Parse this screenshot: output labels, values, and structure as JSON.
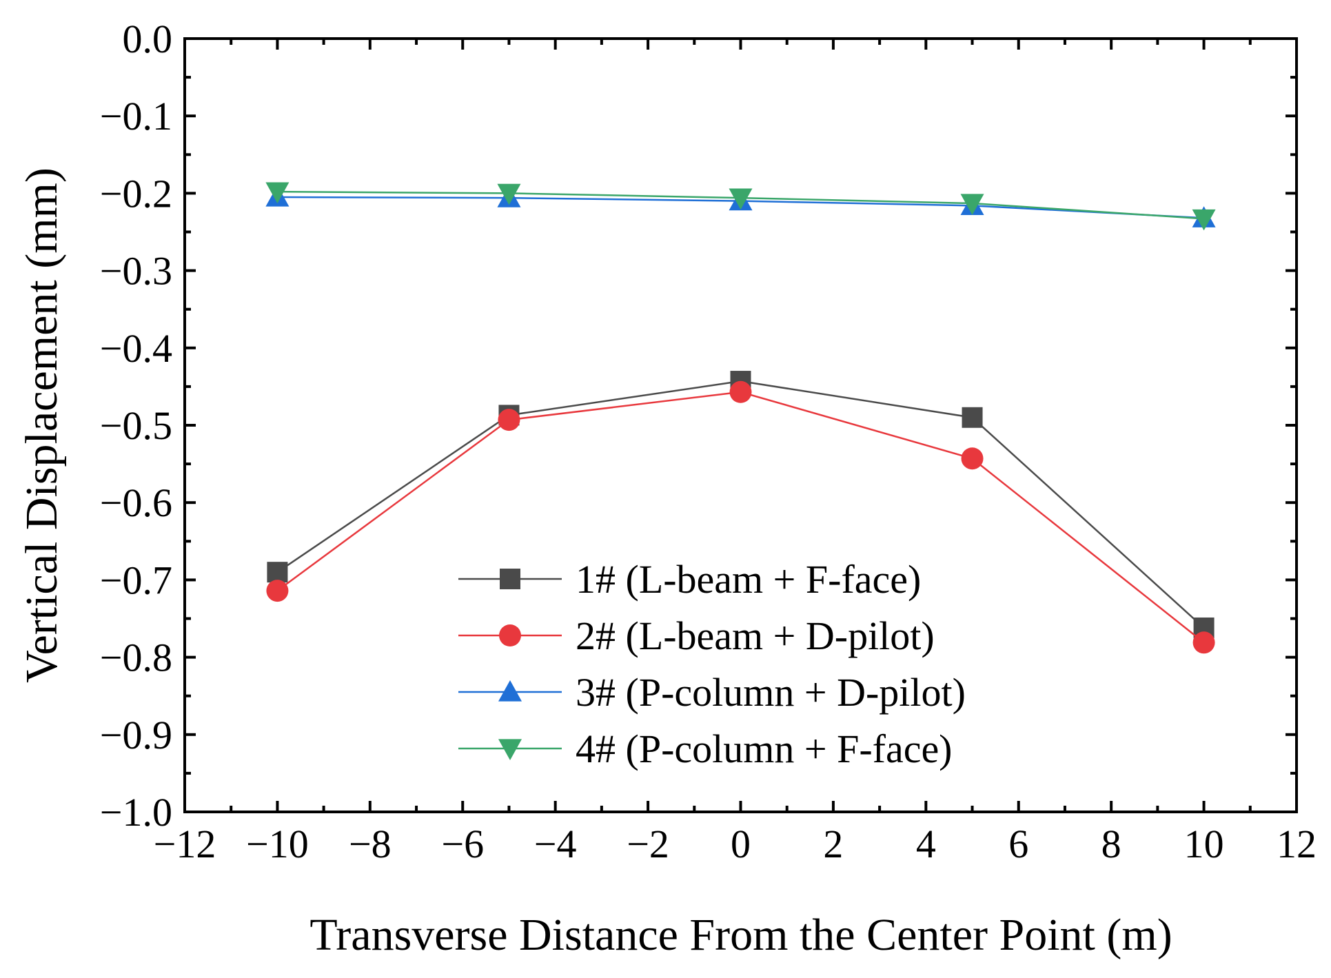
{
  "chart_data": {
    "type": "line",
    "title": "",
    "xlabel": "Transverse Distance From the Center Point (m)",
    "ylabel": "Vertical Displacement (mm)",
    "xlim": [
      -12,
      12
    ],
    "ylim": [
      -1.0,
      0.0
    ],
    "x_major_ticks": [
      -12,
      -10,
      -8,
      -6,
      -4,
      -2,
      0,
      2,
      4,
      6,
      8,
      10,
      12
    ],
    "x_tick_labels": [
      "−12",
      "−10",
      "−8",
      "−6",
      "−4",
      "−2",
      "0",
      "2",
      "4",
      "6",
      "8",
      "10",
      "12"
    ],
    "y_major_ticks": [
      0.0,
      -0.1,
      -0.2,
      -0.3,
      -0.4,
      -0.5,
      -0.6,
      -0.7,
      -0.8,
      -0.9,
      -1.0
    ],
    "y_tick_labels": [
      "0.0",
      "−0.1",
      "−0.2",
      "−0.3",
      "−0.4",
      "−0.5",
      "−0.6",
      "−0.7",
      "−0.8",
      "−0.9",
      "−1.0"
    ],
    "legend_position": "lower-center",
    "x": [
      -10,
      -5,
      0,
      5,
      10
    ],
    "series": [
      {
        "name": "1# (L-beam + F-face)",
        "marker": "square",
        "color": "#4a4a4a",
        "values": [
          -0.69,
          -0.487,
          -0.443,
          -0.49,
          -0.762
        ]
      },
      {
        "name": "2# (L-beam + D-pilot)",
        "marker": "circle",
        "color": "#e8383d",
        "values": [
          -0.714,
          -0.493,
          -0.457,
          -0.543,
          -0.781
        ]
      },
      {
        "name": "3# (P-column + D-pilot)",
        "marker": "triangle-up",
        "color": "#1f6fd6",
        "values": [
          -0.205,
          -0.206,
          -0.21,
          -0.216,
          -0.232
        ]
      },
      {
        "name": "4# (P-column + F-face)",
        "marker": "triangle-down",
        "color": "#3aa66a",
        "values": [
          -0.198,
          -0.2,
          -0.206,
          -0.213,
          -0.233
        ]
      }
    ]
  }
}
